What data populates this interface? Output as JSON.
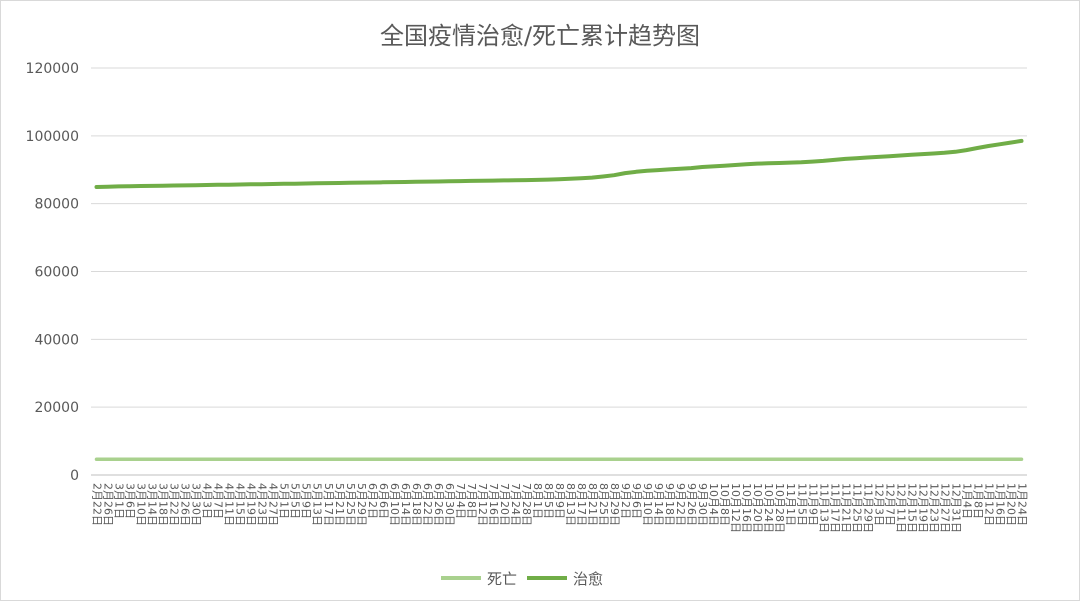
{
  "chart_data": {
    "type": "line",
    "title": "全国疫情治愈/死亡累计趋势图",
    "xlabel": "",
    "ylabel": "",
    "ylim": [
      0,
      120000
    ],
    "yticks": [
      0,
      20000,
      40000,
      60000,
      80000,
      100000,
      120000
    ],
    "grid": true,
    "legend": "bottom",
    "categories": [
      "2月22日",
      "2月26日",
      "3月1日",
      "3月6日",
      "3月10日",
      "3月14日",
      "3月18日",
      "3月22日",
      "3月26日",
      "3月30日",
      "4月3日",
      "4月7日",
      "4月11日",
      "4月15日",
      "4月19日",
      "4月23日",
      "4月27日",
      "5月1日",
      "5月5日",
      "5月9日",
      "5月13日",
      "5月17日",
      "5月21日",
      "5月25日",
      "5月29日",
      "6月2日",
      "6月6日",
      "6月10日",
      "6月14日",
      "6月18日",
      "6月22日",
      "6月26日",
      "6月30日",
      "7月4日",
      "7月8日",
      "7月12日",
      "7月16日",
      "7月20日",
      "7月24日",
      "7月28日",
      "8月1日",
      "8月5日",
      "8月9日",
      "8月13日",
      "8月17日",
      "8月21日",
      "8月25日",
      "8月29日",
      "9月2日",
      "9月6日",
      "9月10日",
      "9月14日",
      "9月18日",
      "9月22日",
      "9月26日",
      "9月30日",
      "10月4日",
      "10月8日",
      "10月12日",
      "10月16日",
      "10月20日",
      "10月24日",
      "10月28日",
      "11月1日",
      "11月5日",
      "11月9日",
      "11月13日",
      "11月17日",
      "11月21日",
      "11月25日",
      "11月29日",
      "12月3日",
      "12月7日",
      "12月11日",
      "12月15日",
      "12月19日",
      "12月23日",
      "12月27日",
      "12月31日",
      "1月4日",
      "1月8日",
      "1月12日",
      "1月16日",
      "1月20日",
      "1月24日"
    ],
    "series": [
      {
        "name": "死亡",
        "color": "#a9d18e",
        "values": [
          4636,
          4636,
          4636,
          4636,
          4636,
          4636,
          4636,
          4636,
          4636,
          4636,
          4636,
          4636,
          4636,
          4636,
          4636,
          4636,
          4636,
          4636,
          4636,
          4636,
          4636,
          4636,
          4636,
          4636,
          4636,
          4636,
          4636,
          4636,
          4636,
          4636,
          4636,
          4636,
          4636,
          4636,
          4636,
          4636,
          4636,
          4636,
          4636,
          4636,
          4636,
          4636,
          4636,
          4636,
          4636,
          4636,
          4636,
          4636,
          4636,
          4636,
          4636,
          4636,
          4636,
          4636,
          4636,
          4636,
          4636,
          4636,
          4636,
          4636,
          4636,
          4636,
          4636,
          4636,
          4636,
          4636,
          4636,
          4636,
          4636,
          4636,
          4636,
          4636,
          4636,
          4636,
          4636,
          4636,
          4636,
          4636,
          4636,
          4636,
          4636,
          4636,
          4636,
          4636,
          4636
        ]
      },
      {
        "name": "治愈",
        "color": "#70ad47",
        "values": [
          84900,
          85000,
          85100,
          85150,
          85200,
          85250,
          85300,
          85350,
          85400,
          85450,
          85500,
          85550,
          85600,
          85650,
          85700,
          85750,
          85800,
          85850,
          85900,
          85950,
          86000,
          86050,
          86100,
          86150,
          86200,
          86250,
          86300,
          86350,
          86400,
          86450,
          86500,
          86550,
          86600,
          86650,
          86700,
          86750,
          86800,
          86850,
          86900,
          86950,
          87000,
          87100,
          87200,
          87350,
          87500,
          87700,
          88000,
          88400,
          89000,
          89400,
          89700,
          89900,
          90100,
          90300,
          90500,
          90800,
          91000,
          91200,
          91400,
          91600,
          91800,
          91900,
          92000,
          92100,
          92200,
          92400,
          92600,
          92900,
          93200,
          93400,
          93600,
          93800,
          94000,
          94200,
          94400,
          94600,
          94800,
          95000,
          95300,
          95800,
          96400,
          97000,
          97500,
          98000,
          98500
        ]
      }
    ]
  }
}
